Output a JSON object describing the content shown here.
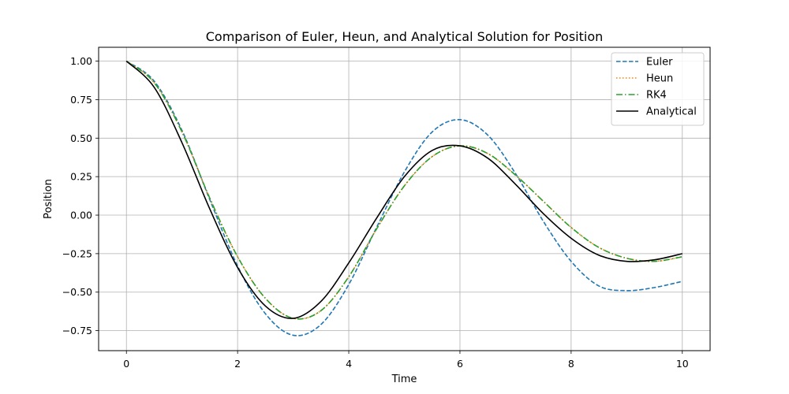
{
  "chart_data": {
    "type": "line",
    "title": "Comparison of Euler, Heun, and Analytical Solution for Position",
    "xlabel": "Time",
    "ylabel": "Position",
    "xlim": [
      -0.5,
      10.5
    ],
    "ylim": [
      -0.88,
      1.09
    ],
    "xticks": [
      0,
      2,
      4,
      6,
      8,
      10
    ],
    "xtick_labels": [
      "0",
      "2",
      "4",
      "6",
      "8",
      "10"
    ],
    "yticks": [
      1.0,
      0.75,
      0.5,
      0.25,
      0.0,
      -0.25,
      -0.5,
      -0.75
    ],
    "ytick_labels": [
      "1.00",
      "0.75",
      "0.50",
      "0.25",
      "0.00",
      "−0.25",
      "−0.50",
      "−0.75"
    ],
    "grid": true,
    "legend_position": "top-right",
    "x": [
      0,
      0.5,
      1,
      1.5,
      2,
      2.5,
      3,
      3.5,
      4,
      4.5,
      5,
      5.5,
      6,
      6.5,
      7,
      7.5,
      8,
      8.5,
      9,
      9.5,
      10
    ],
    "series": [
      {
        "name": "Euler",
        "color": "#1f77b4",
        "style": "dashed",
        "values": [
          1.0,
          0.87,
          0.55,
          0.1,
          -0.33,
          -0.64,
          -0.78,
          -0.71,
          -0.45,
          -0.08,
          0.28,
          0.54,
          0.62,
          0.52,
          0.27,
          -0.04,
          -0.3,
          -0.46,
          -0.49,
          -0.47,
          -0.43
        ]
      },
      {
        "name": "Heun",
        "color": "#ff7f0e",
        "style": "dotted",
        "values": [
          1.0,
          0.86,
          0.54,
          0.11,
          -0.27,
          -0.54,
          -0.67,
          -0.62,
          -0.4,
          -0.09,
          0.19,
          0.38,
          0.45,
          0.4,
          0.26,
          0.09,
          -0.08,
          -0.21,
          -0.28,
          -0.3,
          -0.27
        ]
      },
      {
        "name": "RK4",
        "color": "#2ca02c",
        "style": "dashdot",
        "values": [
          1.0,
          0.86,
          0.54,
          0.11,
          -0.27,
          -0.54,
          -0.67,
          -0.62,
          -0.4,
          -0.09,
          0.19,
          0.38,
          0.45,
          0.4,
          0.26,
          0.09,
          -0.08,
          -0.21,
          -0.28,
          -0.3,
          -0.27
        ]
      },
      {
        "name": "Analytical",
        "color": "#000000",
        "style": "solid",
        "values": [
          1.0,
          0.83,
          0.47,
          0.04,
          -0.34,
          -0.59,
          -0.67,
          -0.56,
          -0.31,
          -0.02,
          0.25,
          0.42,
          0.45,
          0.37,
          0.2,
          0.01,
          -0.15,
          -0.26,
          -0.3,
          -0.29,
          -0.25
        ]
      }
    ]
  }
}
